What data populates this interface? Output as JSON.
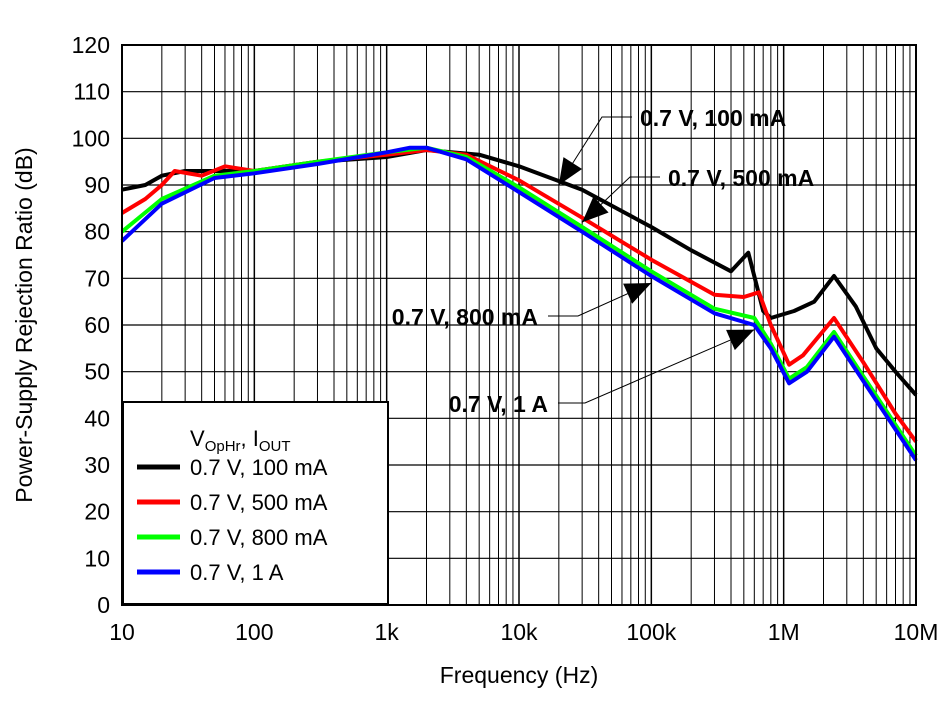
{
  "chart_data": {
    "type": "line",
    "title": "",
    "xlabel": "Frequency (Hz)",
    "ylabel": "Power-Supply Rejection Ratio (dB)",
    "xscale": "log",
    "xlim": [
      10,
      10000000
    ],
    "ylim": [
      0,
      120
    ],
    "grid": true,
    "x_tick_labels": [
      "10",
      "100",
      "1k",
      "10k",
      "100k",
      "1M",
      "10M"
    ],
    "y_tick_labels": [
      "0",
      "10",
      "20",
      "30",
      "40",
      "50",
      "60",
      "70",
      "80",
      "90",
      "100",
      "110",
      "120"
    ],
    "legend": {
      "placement": "bottom-left",
      "title_main_1": "V",
      "title_sub_1": "OpHr",
      "title_sep": ", I",
      "title_sub_2": "OUT"
    },
    "series": [
      {
        "name": "0.7 V, 100 mA",
        "color": "#000000",
        "x": [
          10,
          15,
          20,
          30,
          50,
          100,
          300,
          1000,
          2000,
          5000,
          10000,
          30000,
          100000,
          200000,
          400000,
          540000,
          700000,
          800000,
          1200000,
          1700000,
          2400000,
          3500000,
          5000000,
          7000000,
          10000000
        ],
        "y": [
          89,
          90,
          92,
          93,
          93,
          93,
          95,
          96,
          97.5,
          96.5,
          94,
          89,
          81,
          76,
          71.5,
          75.5,
          63,
          61.5,
          63,
          65,
          70.5,
          64,
          55,
          50,
          45
        ]
      },
      {
        "name": "0.7 V, 500 mA",
        "color": "#ff0000",
        "x": [
          10,
          15,
          20,
          25,
          40,
          60,
          100,
          300,
          1000,
          2000,
          4000,
          10000,
          30000,
          100000,
          300000,
          500000,
          650000,
          800000,
          1100000,
          1400000,
          2400000,
          4000000,
          7000000,
          10000000
        ],
        "y": [
          84,
          87,
          90,
          93,
          92,
          94,
          93,
          95,
          96.5,
          97.5,
          96.5,
          91,
          83,
          74,
          66.5,
          66,
          67,
          60,
          51.5,
          53.5,
          61.5,
          52,
          41,
          35
        ]
      },
      {
        "name": "0.7 V, 800 mA",
        "color": "#00ff00",
        "x": [
          10,
          20,
          50,
          100,
          300,
          1000,
          2000,
          4000,
          10000,
          30000,
          100000,
          300000,
          600000,
          800000,
          1100000,
          1500000,
          2400000,
          4000000,
          10000000
        ],
        "y": [
          80,
          87,
          92,
          93,
          95,
          97,
          98,
          96,
          89.5,
          81,
          71.5,
          63.5,
          61.5,
          56,
          48.5,
          51,
          58.5,
          49,
          32
        ]
      },
      {
        "name": "0.7 V, 1 A",
        "color": "#0000ff",
        "x": [
          10,
          20,
          50,
          100,
          300,
          1000,
          1500,
          2000,
          4000,
          10000,
          30000,
          100000,
          300000,
          600000,
          800000,
          1100000,
          1500000,
          2400000,
          4000000,
          10000000
        ],
        "y": [
          78,
          86,
          91.5,
          92.5,
          94.5,
          97,
          98,
          98,
          95.5,
          88.5,
          80,
          70.5,
          62.5,
          60,
          55,
          47.5,
          50,
          57.5,
          48,
          31
        ]
      }
    ],
    "annotations": [
      {
        "text": "0.7 V, 100 mA",
        "target_x": 20000,
        "target_y": 90
      },
      {
        "text": "0.7 V, 500 mA",
        "target_x": 30000,
        "target_y": 82
      },
      {
        "text": "0.7 V, 800 mA",
        "target_x": 100000,
        "target_y": 69
      },
      {
        "text": "0.7 V, 1 A",
        "target_x": 600000,
        "target_y": 59
      }
    ]
  }
}
